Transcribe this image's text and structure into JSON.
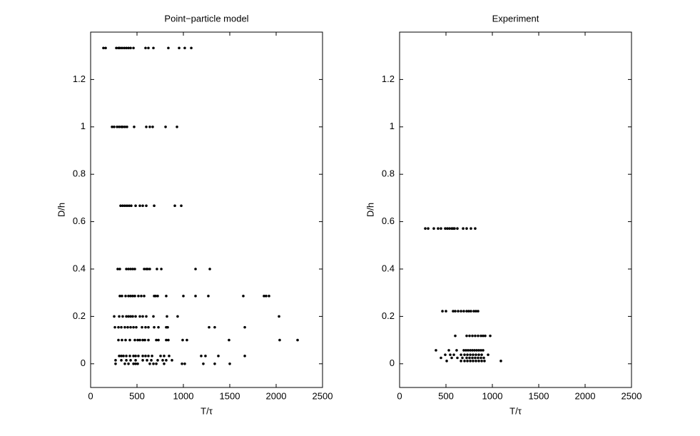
{
  "chart_data": [
    {
      "type": "scatter",
      "title": "Point−particle model",
      "xlabel": "T/τ",
      "ylabel": "D/h",
      "xlim": [
        0,
        2500
      ],
      "ylim": [
        -0.1,
        1.4
      ],
      "xticks": [
        0,
        500,
        1000,
        1500,
        2000,
        2500
      ],
      "yticks": [
        0,
        0.2,
        0.4,
        0.6,
        0.8,
        1,
        1.2
      ],
      "series": [
        {
          "color": "#000000",
          "x": [
            138,
            162,
            277,
            300,
            315,
            338,
            362,
            385,
            408,
            431,
            462,
            592,
            623,
            677,
            838,
            954,
            1015,
            1085
          ],
          "values": [
            1.333,
            1.333,
            1.333,
            1.333,
            1.333,
            1.333,
            1.333,
            1.333,
            1.333,
            1.333,
            1.333,
            1.333,
            1.333,
            1.333,
            1.333,
            1.333,
            1.333,
            1.333
          ]
        },
        {
          "color": "#000000",
          "x": [
            231,
            254,
            285,
            308,
            331,
            346,
            369,
            392,
            469,
            600,
            638,
            669,
            808,
            931
          ],
          "values": [
            1,
            1,
            1,
            1,
            1,
            1,
            1,
            1,
            1,
            1,
            1,
            1,
            1,
            1
          ]
        },
        {
          "color": "#000000",
          "x": [
            323,
            346,
            369,
            392,
            415,
            438,
            485,
            531,
            562,
            600,
            685,
            908,
            977
          ],
          "values": [
            0.667,
            0.667,
            0.667,
            0.667,
            0.667,
            0.667,
            0.667,
            0.667,
            0.667,
            0.667,
            0.667,
            0.667,
            0.667
          ]
        },
        {
          "color": "#000000",
          "x": [
            292,
            315,
            385,
            408,
            431,
            454,
            477,
            577,
            600,
            615,
            638,
            715,
            762,
            1131,
            1285
          ],
          "values": [
            0.4,
            0.4,
            0.4,
            0.4,
            0.4,
            0.4,
            0.4,
            0.4,
            0.4,
            0.4,
            0.4,
            0.4,
            0.4,
            0.4,
            0.4
          ]
        },
        {
          "color": "#000000",
          "x": [
            315,
            338,
            377,
            408,
            431,
            454,
            477,
            515,
            546,
            577,
            685,
            700,
            723,
            815,
            1000,
            1131,
            1269,
            1646,
            1869,
            1892,
            1923
          ],
          "values": [
            0.286,
            0.286,
            0.286,
            0.286,
            0.286,
            0.286,
            0.286,
            0.286,
            0.286,
            0.286,
            0.286,
            0.286,
            0.286,
            0.286,
            0.286,
            0.286,
            0.286,
            0.286,
            0.286,
            0.286,
            0.286
          ]
        },
        {
          "color": "#000000",
          "x": [
            254,
            308,
            346,
            385,
            408,
            431,
            454,
            485,
            531,
            562,
            600,
            677,
            823,
            938,
            2031
          ],
          "values": [
            0.2,
            0.2,
            0.2,
            0.2,
            0.2,
            0.2,
            0.2,
            0.2,
            0.2,
            0.2,
            0.2,
            0.2,
            0.2,
            0.2,
            0.2
          ]
        },
        {
          "color": "#000000",
          "x": [
            262,
            300,
            331,
            369,
            400,
            431,
            462,
            492,
            554,
            592,
            623,
            685,
            731,
            815,
            831,
            1277,
            1338,
            1662
          ],
          "values": [
            0.154,
            0.154,
            0.154,
            0.154,
            0.154,
            0.154,
            0.154,
            0.154,
            0.154,
            0.154,
            0.154,
            0.154,
            0.154,
            0.154,
            0.154,
            0.154,
            0.154,
            0.154
          ]
        },
        {
          "color": "#000000",
          "x": [
            300,
            338,
            377,
            423,
            477,
            508,
            531,
            562,
            585,
            623,
            708,
            731,
            815,
            838,
            992,
            1038,
            1492,
            2038,
            2231
          ],
          "values": [
            0.1,
            0.1,
            0.1,
            0.1,
            0.1,
            0.1,
            0.1,
            0.1,
            0.1,
            0.1,
            0.1,
            0.1,
            0.1,
            0.1,
            0.1,
            0.1,
            0.1,
            0.1,
            0.1
          ]
        },
        {
          "color": "#000000",
          "x": [
            308,
            331,
            354,
            385,
            423,
            462,
            485,
            515,
            562,
            592,
            623,
            662,
            754,
            792,
            846,
            1192,
            1238,
            1377,
            1662
          ],
          "values": [
            0.033,
            0.033,
            0.033,
            0.033,
            0.033,
            0.033,
            0.033,
            0.033,
            0.033,
            0.033,
            0.033,
            0.033,
            0.033,
            0.033,
            0.033,
            0.033,
            0.033,
            0.033,
            0.033
          ]
        },
        {
          "color": "#000000",
          "x": [
            269,
            331,
            385,
            431,
            485,
            562,
            608,
            654,
            723,
            777,
            815,
            877
          ],
          "values": [
            0.015,
            0.015,
            0.015,
            0.015,
            0.015,
            0.015,
            0.015,
            0.015,
            0.015,
            0.015,
            0.015,
            0.015
          ]
        },
        {
          "color": "#000000",
          "x": [
            269,
            369,
            408,
            462,
            485,
            508,
            638,
            677,
            708,
            792,
            985,
            1015,
            1215,
            1338,
            1500
          ],
          "values": [
            0,
            0,
            0,
            0,
            0,
            0,
            0,
            0,
            0,
            0,
            0,
            0,
            0,
            0,
            0
          ]
        }
      ]
    },
    {
      "type": "scatter",
      "title": "Experiment",
      "xlabel": "T/τ",
      "ylabel": "D/h",
      "xlim": [
        0,
        2500
      ],
      "ylim": [
        -0.1,
        1.4
      ],
      "xticks": [
        0,
        500,
        1000,
        1500,
        2000,
        2500
      ],
      "yticks": [
        0,
        0.2,
        0.4,
        0.6,
        0.8,
        1,
        1.2
      ],
      "series": [
        {
          "color": "#000000",
          "x": [
            277,
            308,
            369,
            415,
            446,
            492,
            515,
            538,
            562,
            577,
            592,
            623,
            685,
            723,
            769,
            815
          ],
          "values": [
            0.571,
            0.571,
            0.571,
            0.571,
            0.571,
            0.571,
            0.571,
            0.571,
            0.571,
            0.571,
            0.571,
            0.571,
            0.571,
            0.571,
            0.571,
            0.571
          ]
        },
        {
          "color": "#000000",
          "x": [
            462,
            500,
            577,
            600,
            631,
            662,
            692,
            723,
            746,
            769,
            800,
            823,
            846
          ],
          "values": [
            0.222,
            0.222,
            0.222,
            0.222,
            0.222,
            0.222,
            0.222,
            0.222,
            0.222,
            0.222,
            0.222,
            0.222,
            0.222
          ]
        },
        {
          "color": "#000000",
          "x": [
            600,
            723,
            754,
            785,
            815,
            846,
            877,
            900,
            923,
            977
          ],
          "values": [
            0.118,
            0.118,
            0.118,
            0.118,
            0.118,
            0.118,
            0.118,
            0.118,
            0.118,
            0.118
          ]
        },
        {
          "color": "#000000",
          "x": [
            392,
            531,
            615,
            692,
            715,
            738,
            762,
            785,
            808,
            831,
            854,
            877,
            900
          ],
          "values": [
            0.057,
            0.057,
            0.057,
            0.057,
            0.057,
            0.057,
            0.057,
            0.057,
            0.057,
            0.057,
            0.057,
            0.057,
            0.057
          ]
        },
        {
          "color": "#000000",
          "x": [
            492,
            546,
            585,
            662,
            700,
            731,
            762,
            792,
            823,
            854,
            885,
            954
          ],
          "values": [
            0.038,
            0.038,
            0.038,
            0.038,
            0.038,
            0.038,
            0.038,
            0.038,
            0.038,
            0.038,
            0.038,
            0.038
          ]
        },
        {
          "color": "#000000",
          "x": [
            446,
            562,
            623,
            677,
            723,
            754,
            785,
            815,
            846,
            877,
            908
          ],
          "values": [
            0.025,
            0.025,
            0.025,
            0.025,
            0.025,
            0.025,
            0.025,
            0.025,
            0.025,
            0.025,
            0.025
          ]
        },
        {
          "color": "#000000",
          "x": [
            508,
            662,
            700,
            731,
            762,
            792,
            823,
            854,
            885,
            915,
            1092
          ],
          "values": [
            0.012,
            0.012,
            0.012,
            0.012,
            0.012,
            0.012,
            0.012,
            0.012,
            0.012,
            0.012,
            0.012
          ]
        }
      ]
    }
  ]
}
